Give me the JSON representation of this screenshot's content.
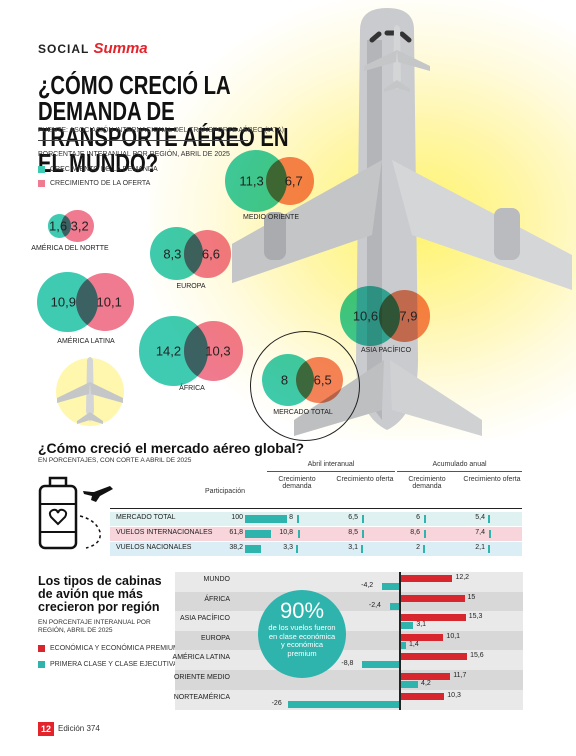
{
  "brand": {
    "social": "SOCIAL",
    "name": "Summa"
  },
  "title": "¿CÓMO CRECIÓ LA DEMANDA DE TRANSPORTE AÉREO EN EL MUNDO?",
  "source": "FUENTE: ASOCIACIÓN INTERNACIONAL DEL TRANSPORTE AÉREO (IATA)",
  "colors": {
    "demand": "#3fcbb1",
    "supply": "#f07a8f",
    "red": "#d7262e",
    "teal": "#2fb3ad"
  },
  "chart_data": [
    {
      "type": "bubble",
      "subtitle": "PORCENTAJE INTERANUAL POR REGIÓN, ABRIL DE 2025",
      "legend": [
        "CRECIMIENTO DE LA DEMANDA",
        "CRECIMIENTO DE LA OFERTA"
      ],
      "regions": [
        {
          "name": "AMÉRICA DEL NORTTE",
          "demand": 1.6,
          "demand_label": "1,6",
          "supply": 3.2,
          "supply_label": "3,2"
        },
        {
          "name": "MEDIO ORIENTE",
          "demand": 11.3,
          "demand_label": "11,3",
          "supply": 6.7,
          "supply_label": "6,7"
        },
        {
          "name": "EUROPA",
          "demand": 8.3,
          "demand_label": "8,3",
          "supply": 6.6,
          "supply_label": "6,6"
        },
        {
          "name": "AMÉRICA LATINA",
          "demand": 10.9,
          "demand_label": "10,9",
          "supply": 10.1,
          "supply_label": "10,1"
        },
        {
          "name": "ASIA PACÍFICO",
          "demand": 10.6,
          "demand_label": "10,6",
          "supply": 7.9,
          "supply_label": "7,9"
        },
        {
          "name": "ÁFRICA",
          "demand": 14.2,
          "demand_label": "14,2",
          "supply": 10.3,
          "supply_label": "10,3"
        },
        {
          "name": "MERCADO TOTAL",
          "demand": 8,
          "demand_label": "8",
          "supply": 6.5,
          "supply_label": "6,5"
        }
      ]
    },
    {
      "type": "table",
      "title": "¿Cómo creció el mercado aéreo global?",
      "subtitle": "EN PORCENTAJES, CON CORTE A ABRIL DE 2025",
      "group_headers": [
        "Abril interanual",
        "Acumulado anual"
      ],
      "columns": [
        "Participación",
        "Crecimiento demanda",
        "Crecimiento oferta",
        "Crecimiento demanda",
        "Crecimiento oferta"
      ],
      "rows": [
        {
          "label": "MERCADO TOTAL",
          "values": [
            100,
            8,
            6.5,
            6,
            5.4
          ],
          "labels": [
            "100",
            "8",
            "6,5",
            "6",
            "5,4"
          ]
        },
        {
          "label": "VUELOS INTERNACIONALES",
          "values": [
            61.8,
            10.8,
            8.5,
            8.6,
            7.4
          ],
          "labels": [
            "61,8",
            "10,8",
            "8,5",
            "8,6",
            "7,4"
          ]
        },
        {
          "label": "VUELOS NACIONALES",
          "values": [
            38.2,
            3.3,
            3.1,
            2,
            2.1
          ],
          "labels": [
            "38,2",
            "3,3",
            "3,1",
            "2",
            "2,1"
          ]
        }
      ]
    },
    {
      "type": "bar",
      "title": "Los tipos de cabinas de avión que más crecieron por región",
      "subtitle": "EN PORCENTAJE INTERANUAL POR REGIÓN, ABRIL DE 2025",
      "legend": [
        "ECONÓMICA Y ECONÓMICA PREMIUM",
        "PRIMERA CLASE Y CLASE EJECUTIVA"
      ],
      "categories": [
        "MUNDO",
        "ÁFRICA",
        "ASIA PACÍFICO",
        "EUROPA",
        "AMÉRICA LATINA",
        "ORIENTE MEDIO",
        "NORTEAMÉRICA"
      ],
      "series": [
        {
          "name": "ECONÓMICA Y ECONÓMICA PREMIUM",
          "values": [
            12.2,
            15,
            15.3,
            10.1,
            15.6,
            11.7,
            10.3
          ],
          "labels": [
            "12,2",
            "15",
            "15,3",
            "10,1",
            "15,6",
            "11,7",
            "10,3"
          ]
        },
        {
          "name": "PRIMERA CLASE Y CLASE EJECUTIVA",
          "values": [
            -4.2,
            -2.4,
            3.1,
            1.4,
            -8.8,
            4.2,
            -26
          ],
          "labels": [
            "-4,2",
            "-2,4",
            "3,1",
            "1,4",
            "-8,8",
            "4,2",
            "-26"
          ]
        }
      ],
      "callout_value": "90%",
      "callout_text": "de los vuelos fueron en clase económica y económica premium"
    }
  ],
  "footer": {
    "page": "12",
    "edition": "Edición 374"
  }
}
